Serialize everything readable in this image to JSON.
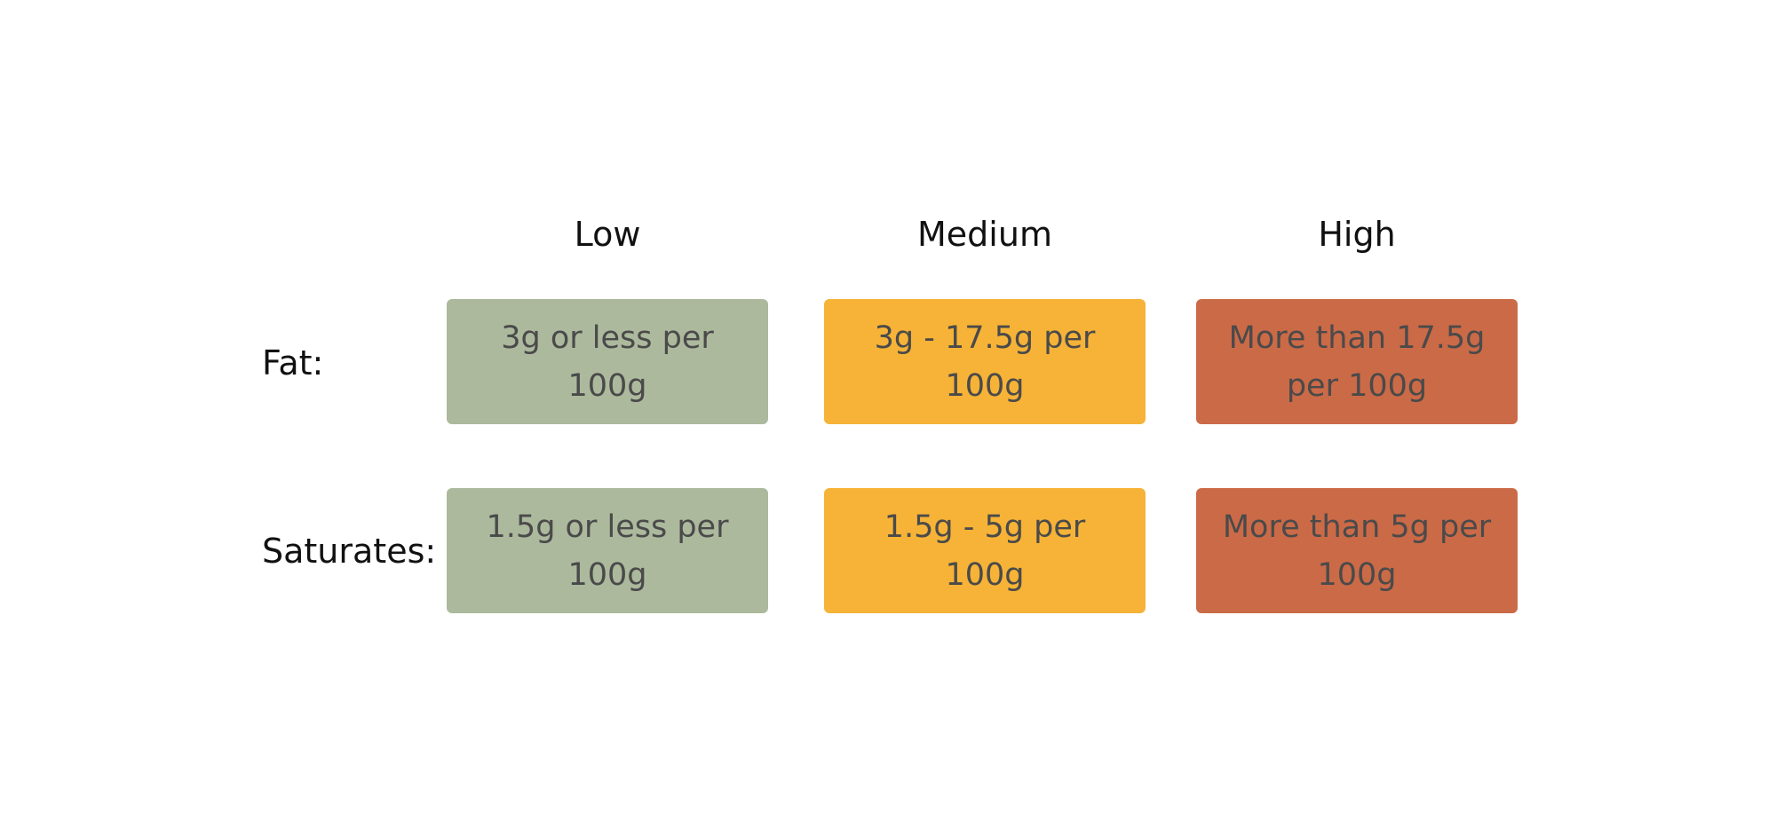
{
  "columns": {
    "low": "Low",
    "medium": "Medium",
    "high": "High"
  },
  "rows": {
    "fat": {
      "label": "Fat:",
      "low": "3g or less per\n100g",
      "medium": "3g - 17.5g per\n100g",
      "high": "More than 17.5g\nper 100g"
    },
    "saturates": {
      "label": "Saturates:",
      "low": "1.5g or less per\n100g",
      "medium": "1.5g - 5g per\n100g",
      "high": "More than 5g per\n100g"
    }
  },
  "colors": {
    "low": "#acb99d",
    "medium": "#f6b337",
    "high": "#cb6a47",
    "cell_text": "#4a4a4a"
  }
}
